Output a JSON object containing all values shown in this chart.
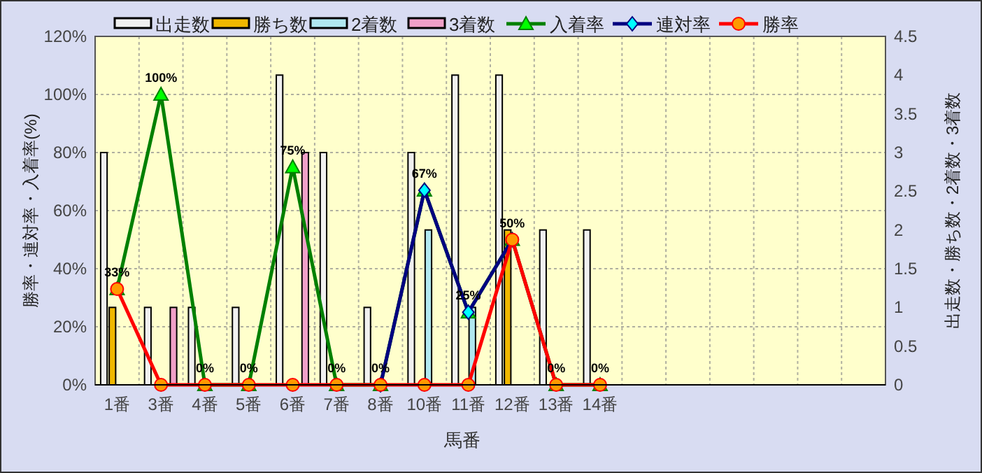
{
  "chart_data": {
    "type": "bar",
    "xlabel": "馬番",
    "ylabel": "勝率・連対率・入着率(%)",
    "y2label": "出走数・勝ち数・2着数・3着数",
    "categories": [
      "1番",
      "3番",
      "4番",
      "5番",
      "6番",
      "7番",
      "8番",
      "10番",
      "11番",
      "12番",
      "13番",
      "14番",
      null,
      null,
      null,
      null,
      null,
      null
    ],
    "ylim": [
      0,
      120
    ],
    "yticks": [
      {
        "value": 0,
        "label": "0%"
      },
      {
        "value": 20,
        "label": "20%"
      },
      {
        "value": 40,
        "label": "40%"
      },
      {
        "value": 60,
        "label": "60%"
      },
      {
        "value": 80,
        "label": "80%"
      },
      {
        "value": 100,
        "label": "100%"
      },
      {
        "value": 120,
        "label": "120%"
      }
    ],
    "y2lim": [
      0,
      4.5
    ],
    "y2ticks": [
      0,
      0.5,
      1,
      1.5,
      2,
      2.5,
      3,
      3.5,
      4,
      4.5
    ],
    "grid": true,
    "legend": "top",
    "series": [
      {
        "name": "出走数",
        "color": "#f0f0f0",
        "axis": "y2",
        "values": [
          3,
          1,
          1,
          1,
          4,
          3,
          1,
          3,
          4,
          4,
          2,
          2,
          null,
          null,
          null,
          null,
          null,
          null
        ]
      },
      {
        "name": "勝ち数",
        "color": "#f0b800",
        "axis": "y2",
        "values": [
          1,
          0,
          0,
          0,
          0,
          0,
          0,
          0,
          0,
          2,
          0,
          0,
          null,
          null,
          null,
          null,
          null,
          null
        ]
      },
      {
        "name": "2着数",
        "color": "#b0e8f0",
        "axis": "y2",
        "values": [
          0,
          0,
          0,
          0,
          0,
          0,
          0,
          2,
          1,
          0,
          0,
          0,
          null,
          null,
          null,
          null,
          null,
          null
        ]
      },
      {
        "name": "3着数",
        "color": "#f0a0c8",
        "axis": "y2",
        "values": [
          0,
          1,
          0,
          0,
          3,
          0,
          0,
          0,
          0,
          0,
          0,
          0,
          null,
          null,
          null,
          null,
          null,
          null
        ]
      },
      {
        "name": "入着率",
        "type": "line",
        "color": "#008000",
        "marker": "triangle",
        "axis": "y",
        "values": [
          33,
          100,
          0,
          0,
          75,
          0,
          0,
          67,
          25,
          50,
          0,
          0,
          null,
          null,
          null,
          null,
          null,
          null
        ],
        "value_labels": [
          "33%",
          "100%",
          "0%",
          "0%",
          "75%",
          "0%",
          "0%",
          "67%",
          "25%",
          "50%",
          "0%",
          "0%",
          null,
          null,
          null,
          null,
          null,
          null
        ]
      },
      {
        "name": "連対率",
        "type": "line",
        "color": "#000080",
        "marker": "diamond",
        "axis": "y",
        "values": [
          null,
          null,
          null,
          null,
          null,
          null,
          0,
          67,
          25,
          50,
          null,
          null,
          null,
          null,
          null,
          null,
          null,
          null
        ]
      },
      {
        "name": "勝率",
        "type": "line",
        "color": "#ff0000",
        "marker": "circle",
        "axis": "y",
        "values": [
          33,
          0,
          0,
          0,
          0,
          0,
          0,
          0,
          0,
          50,
          0,
          0,
          null,
          null,
          null,
          null,
          null,
          null
        ]
      }
    ]
  }
}
